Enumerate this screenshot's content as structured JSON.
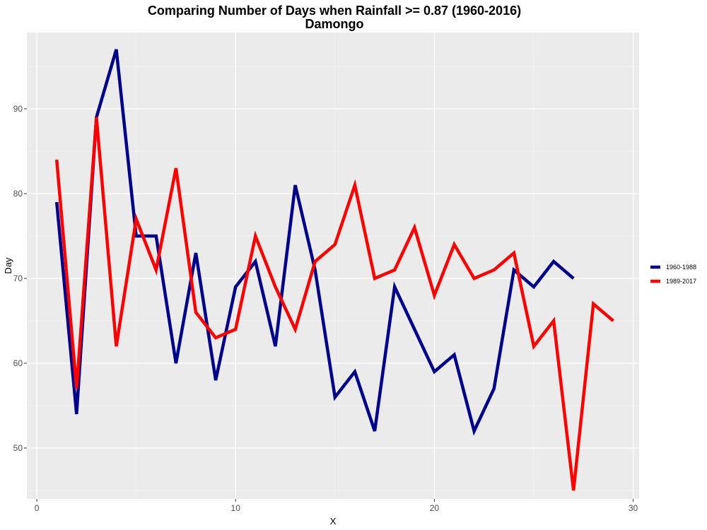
{
  "chart_data": {
    "type": "line",
    "title": "Comparing Number of Days when Rainfall >= 0.87 (1960-2016)",
    "subtitle": "Damongo",
    "xlabel": "X",
    "ylabel": "Day",
    "xlim": [
      -0.5,
      30.3
    ],
    "ylim": [
      44,
      99
    ],
    "xticks": [
      0,
      10,
      20,
      30
    ],
    "yticks": [
      50,
      60,
      70,
      80,
      90
    ],
    "grid": true,
    "legend_position": "right",
    "series": [
      {
        "name": "1960-1988",
        "color": "#00008B",
        "x": [
          1,
          2,
          3,
          4,
          5,
          6,
          7,
          8,
          9,
          10,
          11,
          12,
          13,
          14,
          15,
          16,
          17,
          18,
          19,
          20,
          21,
          22,
          23,
          24,
          25,
          26,
          27
        ],
        "y": [
          79,
          54,
          89,
          97,
          75,
          75,
          60,
          73,
          58,
          69,
          72,
          62,
          81,
          71,
          56,
          59,
          52,
          69,
          64,
          59,
          61,
          52,
          57,
          71,
          69,
          72,
          70
        ]
      },
      {
        "name": "1989-2017",
        "color": "#FF0000",
        "x": [
          1,
          2,
          3,
          4,
          5,
          6,
          7,
          8,
          9,
          10,
          11,
          12,
          13,
          14,
          15,
          16,
          17,
          18,
          19,
          20,
          21,
          22,
          23,
          24,
          25,
          26,
          27,
          28,
          29
        ],
        "y": [
          84,
          57,
          89,
          62,
          77,
          71,
          83,
          66,
          63,
          64,
          75,
          69,
          64,
          72,
          74,
          81,
          70,
          71,
          76,
          68,
          74,
          70,
          71,
          73,
          62,
          65,
          45,
          67,
          65
        ]
      }
    ]
  }
}
